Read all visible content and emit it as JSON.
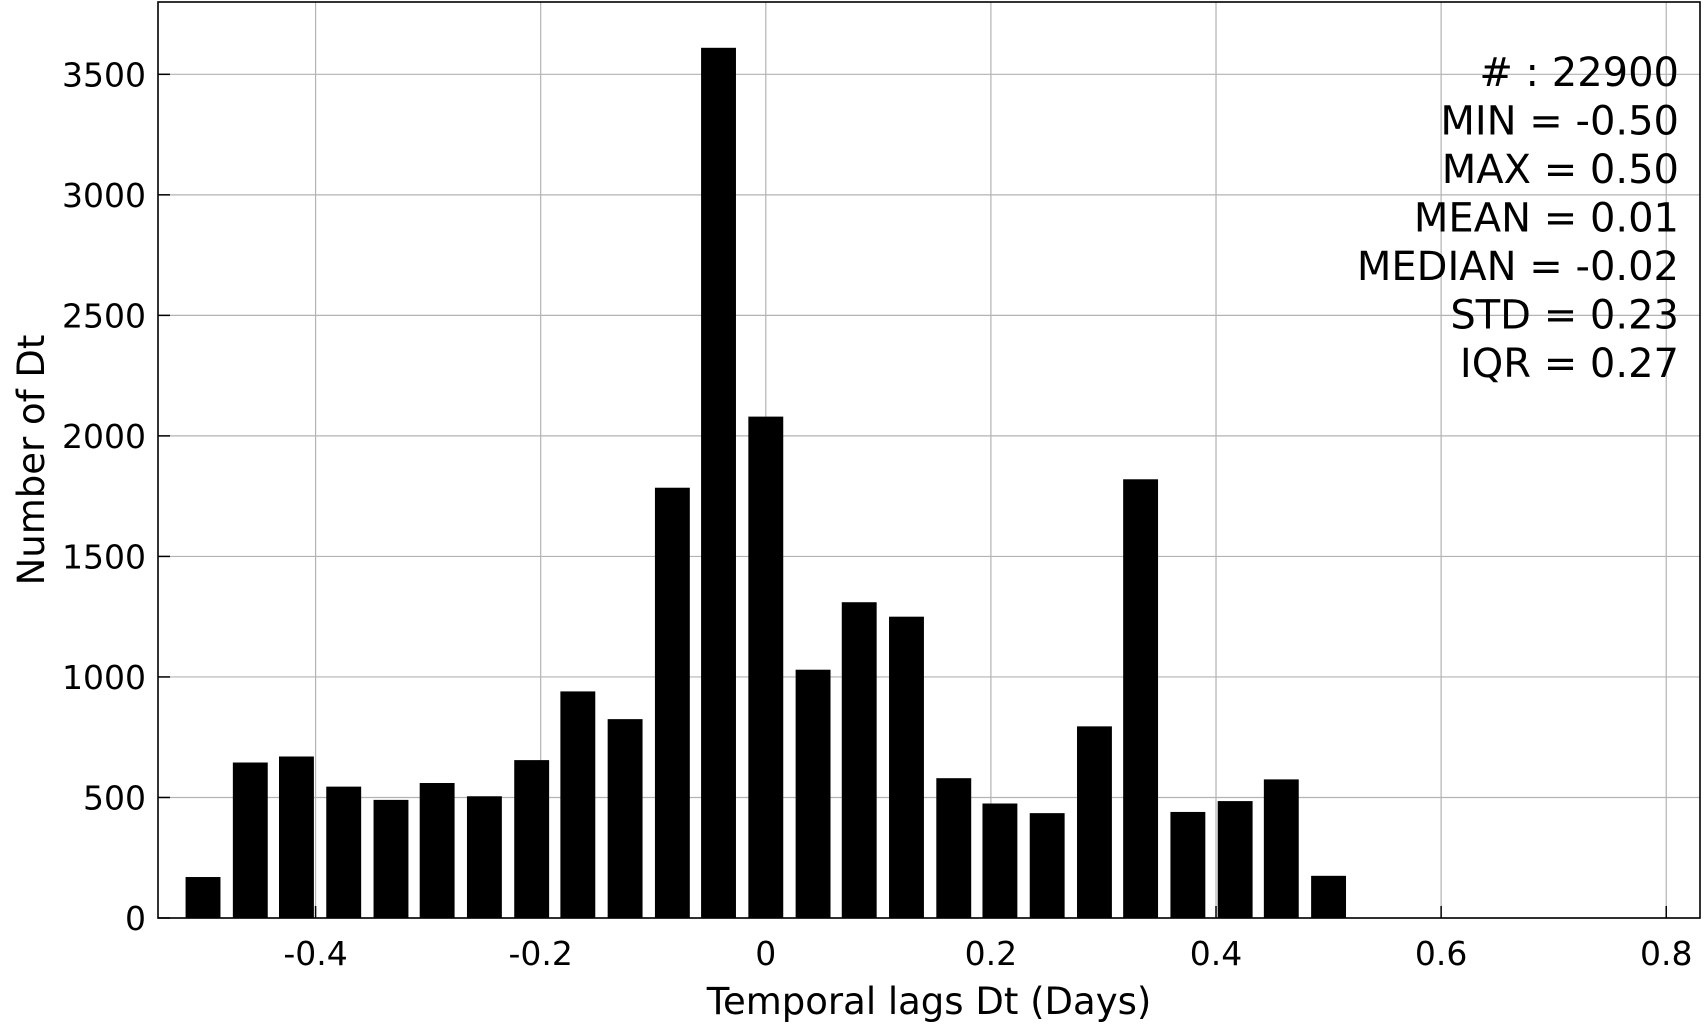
{
  "chart_data": {
    "type": "bar",
    "xlabel": "Temporal lags Dt (Days)",
    "ylabel": "Number of Dt",
    "xlim": [
      -0.54,
      0.83
    ],
    "ylim": [
      0,
      3800
    ],
    "xticks": [
      -0.4,
      -0.2,
      0,
      0.2,
      0.4,
      0.6,
      0.8
    ],
    "xtick_labels": [
      "-0.4",
      "-0.2",
      "0",
      "0.2",
      "0.4",
      "0.6",
      "0.8"
    ],
    "yticks": [
      0,
      500,
      1000,
      1500,
      2000,
      2500,
      3000,
      3500
    ],
    "ytick_labels": [
      "0",
      "500",
      "1000",
      "1500",
      "2000",
      "2500",
      "3000",
      "3500"
    ],
    "grid": true,
    "bar_width": 0.031,
    "x": [
      -0.5,
      -0.458,
      -0.417,
      -0.375,
      -0.333,
      -0.292,
      -0.25,
      -0.208,
      -0.167,
      -0.125,
      -0.083,
      -0.042,
      0.0,
      0.042,
      0.083,
      0.125,
      0.167,
      0.208,
      0.25,
      0.292,
      0.333,
      0.375,
      0.417,
      0.458,
      0.5
    ],
    "values": [
      170,
      645,
      670,
      545,
      490,
      560,
      505,
      655,
      940,
      825,
      1785,
      3610,
      2080,
      1030,
      1310,
      1250,
      580,
      475,
      435,
      795,
      1820,
      440,
      485,
      575,
      175
    ],
    "annotations": [
      "# : 22900",
      "MIN = -0.50",
      "MAX =  0.50",
      "MEAN = 0.01",
      "MEDIAN = -0.02",
      "STD = 0.23",
      "IQR = 0.27"
    ],
    "annotation_placement": "top-right"
  }
}
